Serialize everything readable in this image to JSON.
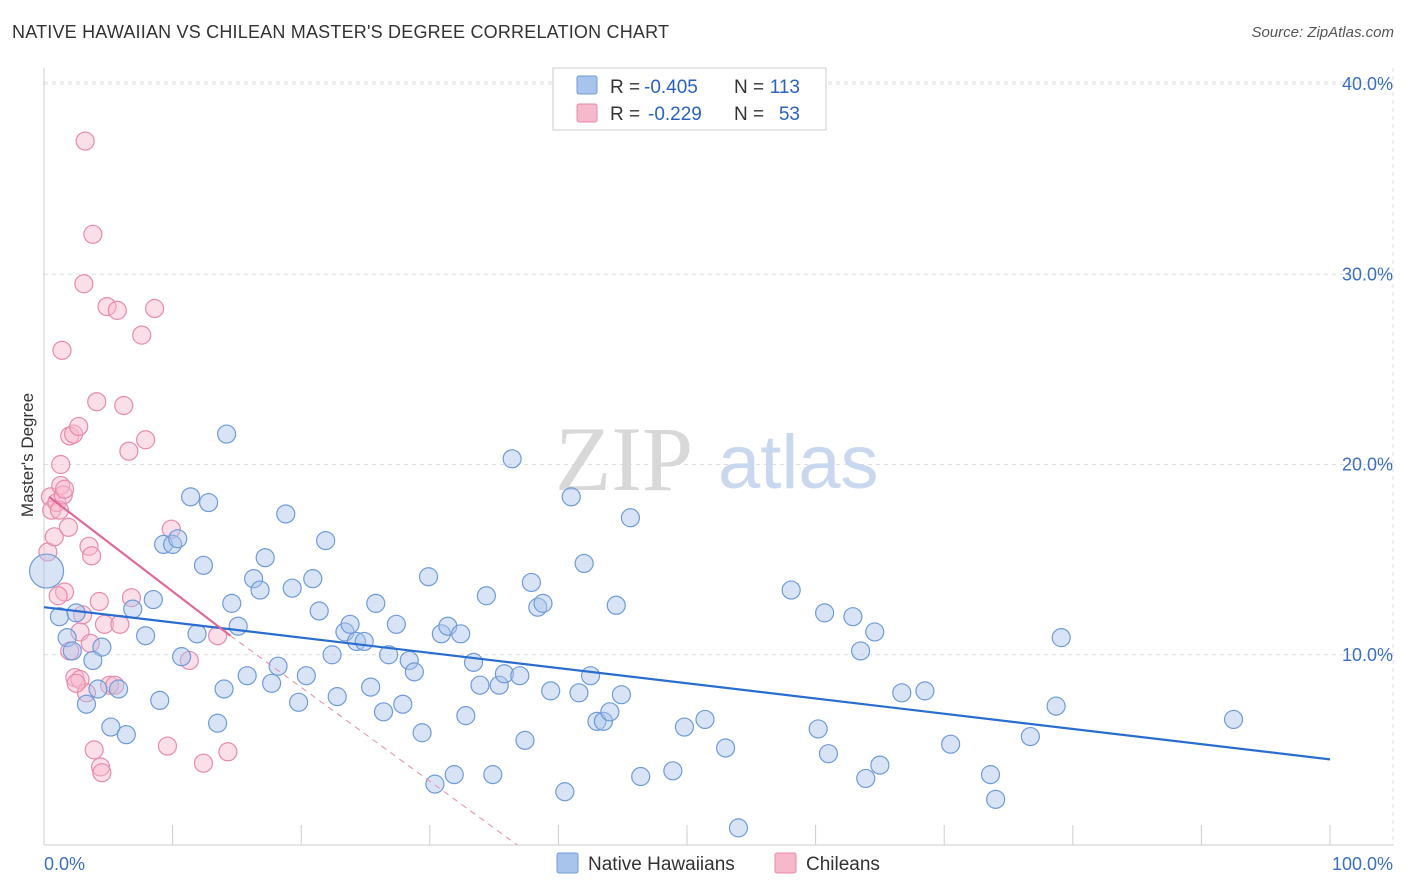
{
  "title": "NATIVE HAWAIIAN VS CHILEAN MASTER'S DEGREE CORRELATION CHART",
  "source": "Source: ZipAtlas.com",
  "watermark": {
    "zip": "ZIP",
    "atlas": "atlas"
  },
  "colors": {
    "blue_fill": "#a9c4ec",
    "blue_stroke": "#6f9bd8",
    "blue_line": "#2a6dd0",
    "pink_fill": "#f6b8cb",
    "pink_stroke": "#e98aaa",
    "pink_line": "#e0689a",
    "grid": "#dddddd",
    "tick_text": "#3a6fc4"
  },
  "legend": {
    "rows": [
      {
        "series": "Native Hawaiians",
        "r_label": "R =",
        "r_value": "-0.405",
        "n_label": "N =",
        "n_value": "113"
      },
      {
        "series": "Chileans",
        "r_label": "R =",
        "r_value": "-0.229",
        "n_label": "N =",
        "n_value": "53"
      }
    ]
  },
  "chart_data": {
    "type": "scatter",
    "title": "NATIVE HAWAIIAN VS CHILEAN MASTER'S DEGREE CORRELATION CHART",
    "ylabel": "Master's Degree",
    "xlabel": "",
    "xlim": [
      0,
      100
    ],
    "ylim": [
      0,
      40
    ],
    "x_tick_labels": [
      "0.0%",
      "100.0%"
    ],
    "y_ticks": [
      10,
      20,
      30,
      40
    ],
    "y_tick_labels": [
      "10.0%",
      "20.0%",
      "30.0%",
      "40.0%"
    ],
    "grid": true,
    "series": [
      {
        "name": "Native Hawaiians",
        "trend": {
          "x": [
            0,
            100
          ],
          "y": [
            12.5,
            4.5
          ]
        },
        "points": [
          [
            0.2,
            14.4
          ],
          [
            1.2,
            12.0
          ],
          [
            2.5,
            12.2
          ],
          [
            1.8,
            10.9
          ],
          [
            2.2,
            10.2
          ],
          [
            4.5,
            10.4
          ],
          [
            3.8,
            9.7
          ],
          [
            4.2,
            8.2
          ],
          [
            5.8,
            8.2
          ],
          [
            3.3,
            7.4
          ],
          [
            5.2,
            6.2
          ],
          [
            6.4,
            5.8
          ],
          [
            6.9,
            12.4
          ],
          [
            7.9,
            11.0
          ],
          [
            8.5,
            12.9
          ],
          [
            9.0,
            7.6
          ],
          [
            9.3,
            15.8
          ],
          [
            10.0,
            15.8
          ],
          [
            10.4,
            16.1
          ],
          [
            10.7,
            9.9
          ],
          [
            11.4,
            18.3
          ],
          [
            11.9,
            11.1
          ],
          [
            12.4,
            14.7
          ],
          [
            12.8,
            18.0
          ],
          [
            13.5,
            6.4
          ],
          [
            14.0,
            8.2
          ],
          [
            14.6,
            12.7
          ],
          [
            14.2,
            21.6
          ],
          [
            15.1,
            11.5
          ],
          [
            15.8,
            8.9
          ],
          [
            16.3,
            14.0
          ],
          [
            16.8,
            13.4
          ],
          [
            17.2,
            15.1
          ],
          [
            17.7,
            8.5
          ],
          [
            18.2,
            9.4
          ],
          [
            18.8,
            17.4
          ],
          [
            19.3,
            13.5
          ],
          [
            19.8,
            7.5
          ],
          [
            20.4,
            8.9
          ],
          [
            20.9,
            14.0
          ],
          [
            21.4,
            12.3
          ],
          [
            21.9,
            16.0
          ],
          [
            22.4,
            10.0
          ],
          [
            22.8,
            7.8
          ],
          [
            23.4,
            11.2
          ],
          [
            23.8,
            11.6
          ],
          [
            24.3,
            10.7
          ],
          [
            24.9,
            10.7
          ],
          [
            25.4,
            8.3
          ],
          [
            25.8,
            12.7
          ],
          [
            26.4,
            7.0
          ],
          [
            26.8,
            10.0
          ],
          [
            27.4,
            11.6
          ],
          [
            27.9,
            7.4
          ],
          [
            28.4,
            9.7
          ],
          [
            28.8,
            9.1
          ],
          [
            29.4,
            5.9
          ],
          [
            29.9,
            14.1
          ],
          [
            30.4,
            3.2
          ],
          [
            30.9,
            11.1
          ],
          [
            31.4,
            11.5
          ],
          [
            31.9,
            3.7
          ],
          [
            32.4,
            11.1
          ],
          [
            32.8,
            6.8
          ],
          [
            33.4,
            9.6
          ],
          [
            33.9,
            8.4
          ],
          [
            34.4,
            13.1
          ],
          [
            34.9,
            3.7
          ],
          [
            35.4,
            8.4
          ],
          [
            35.8,
            9.0
          ],
          [
            36.4,
            20.3
          ],
          [
            37.0,
            8.9
          ],
          [
            37.4,
            5.5
          ],
          [
            37.9,
            13.8
          ],
          [
            38.4,
            12.5
          ],
          [
            38.8,
            12.7
          ],
          [
            39.4,
            8.1
          ],
          [
            40.5,
            2.8
          ],
          [
            41.0,
            18.3
          ],
          [
            41.6,
            8.0
          ],
          [
            42.0,
            14.8
          ],
          [
            42.5,
            8.9
          ],
          [
            43.0,
            6.5
          ],
          [
            43.5,
            6.5
          ],
          [
            44.0,
            7.0
          ],
          [
            44.5,
            12.6
          ],
          [
            44.9,
            7.9
          ],
          [
            45.6,
            17.2
          ],
          [
            46.4,
            3.6
          ],
          [
            48.9,
            3.9
          ],
          [
            49.8,
            6.2
          ],
          [
            51.4,
            6.6
          ],
          [
            53.0,
            5.1
          ],
          [
            54.0,
            0.9
          ],
          [
            58.1,
            13.4
          ],
          [
            60.2,
            6.1
          ],
          [
            60.7,
            12.2
          ],
          [
            61.0,
            4.8
          ],
          [
            62.9,
            12.0
          ],
          [
            63.5,
            10.2
          ],
          [
            63.9,
            3.5
          ],
          [
            64.6,
            11.2
          ],
          [
            65.0,
            4.2
          ],
          [
            66.7,
            8.0
          ],
          [
            68.5,
            8.1
          ],
          [
            70.5,
            5.3
          ],
          [
            73.6,
            3.7
          ],
          [
            74.0,
            2.4
          ],
          [
            76.7,
            5.7
          ],
          [
            78.7,
            7.3
          ],
          [
            79.1,
            10.9
          ],
          [
            92.5,
            6.6
          ]
        ]
      },
      {
        "name": "Chileans",
        "trend": {
          "x": [
            0.4,
            14.5
          ],
          "y": [
            18.3,
            11.0
          ]
        },
        "trend_dashed": {
          "x": [
            14.5,
            36.8
          ],
          "y": [
            11.0,
            0.0
          ]
        },
        "points": [
          [
            0.3,
            15.4
          ],
          [
            0.5,
            18.3
          ],
          [
            0.6,
            17.6
          ],
          [
            0.8,
            16.2
          ],
          [
            1.0,
            18.0
          ],
          [
            1.2,
            17.6
          ],
          [
            1.3,
            18.9
          ],
          [
            1.5,
            18.4
          ],
          [
            1.6,
            18.7
          ],
          [
            1.9,
            16.7
          ],
          [
            1.4,
            26.0
          ],
          [
            1.3,
            20.0
          ],
          [
            2.0,
            21.5
          ],
          [
            2.3,
            21.6
          ],
          [
            1.6,
            13.3
          ],
          [
            2.4,
            8.8
          ],
          [
            2.8,
            8.7
          ],
          [
            2.8,
            11.2
          ],
          [
            2.7,
            22.0
          ],
          [
            3.1,
            29.5
          ],
          [
            3.2,
            37.0
          ],
          [
            3.3,
            8.0
          ],
          [
            3.5,
            15.7
          ],
          [
            3.7,
            15.2
          ],
          [
            3.6,
            10.6
          ],
          [
            3.9,
            5.0
          ],
          [
            3.8,
            32.1
          ],
          [
            4.1,
            23.3
          ],
          [
            4.3,
            12.8
          ],
          [
            4.4,
            4.1
          ],
          [
            4.5,
            3.8
          ],
          [
            4.7,
            11.6
          ],
          [
            4.9,
            28.3
          ],
          [
            5.1,
            8.4
          ],
          [
            5.5,
            8.4
          ],
          [
            5.7,
            28.1
          ],
          [
            5.9,
            11.6
          ],
          [
            6.2,
            23.1
          ],
          [
            6.6,
            20.7
          ],
          [
            6.8,
            13.0
          ],
          [
            7.6,
            26.8
          ],
          [
            7.9,
            21.3
          ],
          [
            8.6,
            28.2
          ],
          [
            9.6,
            5.2
          ],
          [
            9.9,
            16.6
          ],
          [
            11.3,
            9.7
          ],
          [
            12.4,
            4.3
          ],
          [
            13.5,
            11.0
          ],
          [
            14.3,
            4.9
          ],
          [
            2.5,
            8.5
          ],
          [
            1.1,
            13.1
          ],
          [
            2.0,
            10.2
          ],
          [
            3.0,
            12.1
          ]
        ]
      }
    ]
  }
}
